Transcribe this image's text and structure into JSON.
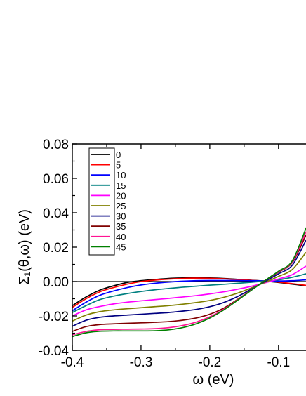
{
  "chart_data": {
    "type": "line",
    "title": "",
    "xlabel": "ω (eV)",
    "ylabel": "Σ₁(θ,ω) (eV)",
    "xlim": [
      -0.4,
      -0.06
    ],
    "ylim": [
      -0.04,
      0.08
    ],
    "x_ticks": [
      -0.4,
      -0.3,
      -0.2,
      -0.1
    ],
    "y_ticks": [
      -0.04,
      -0.02,
      0.0,
      0.02,
      0.04,
      0.06,
      0.08
    ],
    "x_tick_labels": [
      "-0.4",
      "-0.3",
      "-0.2",
      "-0.1"
    ],
    "y_tick_labels": [
      "-0.04",
      "-0.02",
      "0.00",
      "0.02",
      "0.04",
      "0.06",
      "0.08"
    ],
    "zero_line": true,
    "grid": false,
    "legend_position": "top-left",
    "x": [
      -0.4,
      -0.38,
      -0.36,
      -0.34,
      -0.32,
      -0.3,
      -0.28,
      -0.26,
      -0.24,
      -0.22,
      -0.2,
      -0.18,
      -0.16,
      -0.14,
      -0.12,
      -0.1,
      -0.08,
      -0.06
    ],
    "series": [
      {
        "name": "0",
        "color": "#000000",
        "values": [
          -0.014,
          -0.009,
          -0.005,
          -0.0025,
          -0.0005,
          0.0005,
          0.0012,
          0.0018,
          0.0021,
          0.0022,
          0.0021,
          0.0018,
          0.0013,
          0.0008,
          0.0003,
          -0.0005,
          -0.0015,
          -0.0025
        ]
      },
      {
        "name": "5",
        "color": "#ff0000",
        "values": [
          -0.015,
          -0.01,
          -0.006,
          -0.0035,
          -0.0015,
          0.0,
          0.0008,
          0.0014,
          0.0018,
          0.002,
          0.0019,
          0.0016,
          0.0012,
          0.0007,
          0.0003,
          -0.0003,
          -0.0012,
          -0.0022
        ]
      },
      {
        "name": "10",
        "color": "#0000ff",
        "values": [
          -0.017,
          -0.012,
          -0.008,
          -0.0055,
          -0.0035,
          -0.002,
          -0.001,
          -0.0003,
          0.0002,
          0.0005,
          0.0006,
          0.0006,
          0.0006,
          0.0005,
          0.0004,
          0.0003,
          0.0005,
          0.001
        ]
      },
      {
        "name": "15",
        "color": "#008080",
        "values": [
          -0.018,
          -0.014,
          -0.0105,
          -0.0085,
          -0.007,
          -0.0058,
          -0.0048,
          -0.004,
          -0.0033,
          -0.0027,
          -0.0021,
          -0.0016,
          -0.001,
          -0.0004,
          0.0003,
          0.001,
          0.0025,
          0.0045
        ]
      },
      {
        "name": "20",
        "color": "#ff00ff",
        "values": [
          -0.02,
          -0.0165,
          -0.0145,
          -0.013,
          -0.012,
          -0.0112,
          -0.0105,
          -0.0098,
          -0.009,
          -0.0082,
          -0.0072,
          -0.006,
          -0.0045,
          -0.0028,
          -0.0008,
          0.0015,
          0.004,
          0.009
        ]
      },
      {
        "name": "25",
        "color": "#808000",
        "values": [
          -0.023,
          -0.0195,
          -0.0175,
          -0.0165,
          -0.0158,
          -0.0152,
          -0.0146,
          -0.014,
          -0.0132,
          -0.0122,
          -0.011,
          -0.0092,
          -0.0068,
          -0.0038,
          -0.0005,
          0.003,
          0.007,
          0.017
        ]
      },
      {
        "name": "30",
        "color": "#000080",
        "values": [
          -0.026,
          -0.0225,
          -0.0208,
          -0.02,
          -0.0195,
          -0.019,
          -0.0185,
          -0.018,
          -0.0172,
          -0.0162,
          -0.0146,
          -0.0122,
          -0.0088,
          -0.0045,
          0.0,
          0.0045,
          0.0095,
          0.024
        ]
      },
      {
        "name": "35",
        "color": "#800000",
        "values": [
          -0.029,
          -0.0262,
          -0.025,
          -0.0246,
          -0.0243,
          -0.024,
          -0.0237,
          -0.0233,
          -0.0225,
          -0.0212,
          -0.019,
          -0.0155,
          -0.0105,
          -0.005,
          0.0005,
          0.0055,
          0.011,
          0.027
        ]
      },
      {
        "name": "40",
        "color": "#ff1493",
        "values": [
          -0.031,
          -0.029,
          -0.028,
          -0.0278,
          -0.0277,
          -0.0276,
          -0.0274,
          -0.0268,
          -0.0256,
          -0.0236,
          -0.0205,
          -0.0162,
          -0.0108,
          -0.005,
          0.0005,
          0.0058,
          0.0115,
          0.029
        ]
      },
      {
        "name": "45",
        "color": "#008000",
        "values": [
          -0.032,
          -0.0298,
          -0.0289,
          -0.0287,
          -0.0287,
          -0.0287,
          -0.0286,
          -0.0281,
          -0.0268,
          -0.0246,
          -0.0212,
          -0.0166,
          -0.011,
          -0.0052,
          0.0005,
          0.006,
          0.012,
          0.031
        ]
      }
    ]
  }
}
